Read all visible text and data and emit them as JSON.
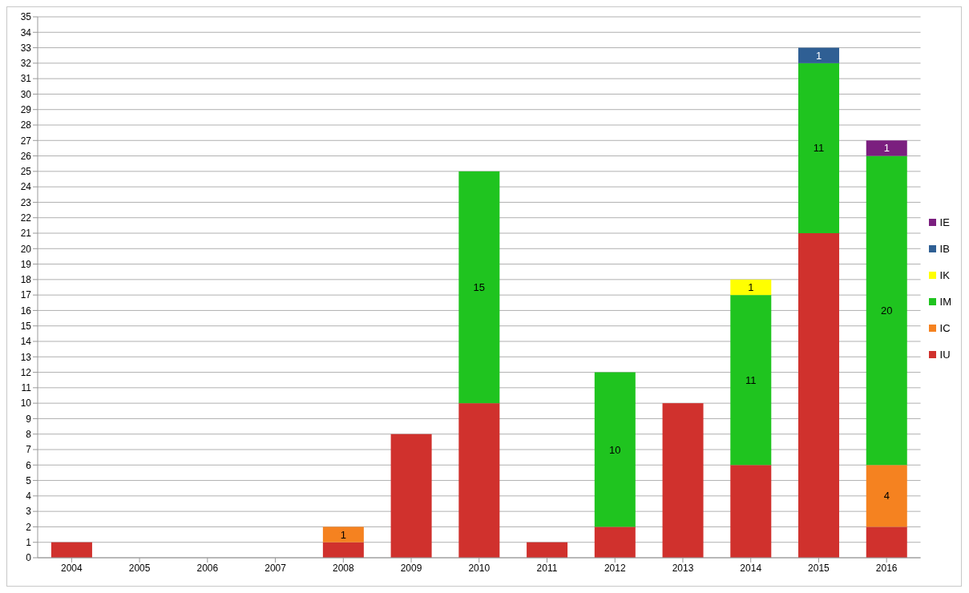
{
  "chart_data": {
    "type": "bar",
    "stacked": true,
    "categories": [
      "2004",
      "2005",
      "2006",
      "2007",
      "2008",
      "2009",
      "2010",
      "2011",
      "2012",
      "2013",
      "2014",
      "2015",
      "2016"
    ],
    "series": [
      {
        "name": "IU",
        "color": "#d0312d",
        "values": [
          1,
          null,
          null,
          null,
          1,
          8,
          10,
          1,
          2,
          10,
          6,
          21,
          2
        ]
      },
      {
        "name": "IC",
        "color": "#f58220",
        "values": [
          null,
          null,
          null,
          null,
          1,
          null,
          null,
          null,
          null,
          null,
          null,
          null,
          4
        ],
        "value_labels": [
          null,
          null,
          null,
          null,
          "1",
          null,
          null,
          null,
          null,
          null,
          null,
          null,
          "4"
        ]
      },
      {
        "name": "IM",
        "color": "#1fc41f",
        "values": [
          null,
          null,
          null,
          null,
          null,
          null,
          15,
          null,
          10,
          null,
          11,
          11,
          20
        ],
        "value_labels": [
          null,
          null,
          null,
          null,
          null,
          null,
          "15",
          null,
          "10",
          null,
          "11",
          "11",
          "20"
        ]
      },
      {
        "name": "IK",
        "color": "#ffff00",
        "values": [
          null,
          null,
          null,
          null,
          null,
          null,
          null,
          null,
          null,
          null,
          1,
          null,
          null
        ],
        "value_labels": [
          null,
          null,
          null,
          null,
          null,
          null,
          null,
          null,
          null,
          null,
          "1",
          null,
          null
        ]
      },
      {
        "name": "IB",
        "color": "#2f5f94",
        "values": [
          null,
          null,
          null,
          null,
          null,
          null,
          null,
          null,
          null,
          null,
          null,
          1,
          null
        ],
        "value_labels": [
          null,
          null,
          null,
          null,
          null,
          null,
          null,
          null,
          null,
          null,
          null,
          "1",
          null
        ]
      },
      {
        "name": "IE",
        "color": "#7b1f7f",
        "values": [
          null,
          null,
          null,
          null,
          null,
          null,
          null,
          null,
          null,
          null,
          null,
          null,
          1
        ],
        "value_labels": [
          null,
          null,
          null,
          null,
          null,
          null,
          null,
          null,
          null,
          null,
          null,
          null,
          "1"
        ]
      }
    ],
    "ylim": [
      0,
      35
    ],
    "yticks": [
      0,
      1,
      2,
      3,
      4,
      5,
      6,
      7,
      8,
      9,
      10,
      11,
      12,
      13,
      14,
      15,
      16,
      17,
      18,
      19,
      20,
      21,
      22,
      23,
      24,
      25,
      26,
      27,
      28,
      29,
      30,
      31,
      32,
      33,
      34,
      35
    ],
    "grid": "y",
    "legend": "right"
  }
}
